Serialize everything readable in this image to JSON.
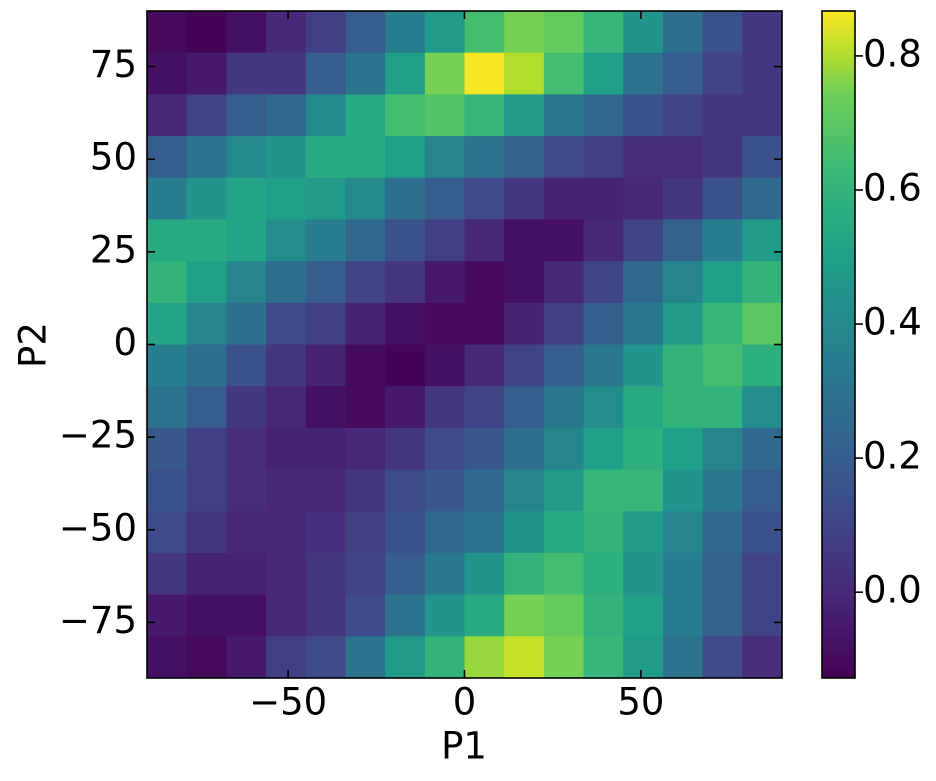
{
  "chart_data": {
    "type": "heatmap",
    "x_label": "P1",
    "y_label": "P2",
    "xlim": [
      -90,
      90
    ],
    "ylim": [
      -90,
      90
    ],
    "xticks": [
      {
        "value": -50,
        "label": "−50"
      },
      0,
      50
    ],
    "yticks": [
      {
        "value": -75,
        "label": "−75"
      },
      {
        "value": -50,
        "label": "−50"
      },
      {
        "value": -25,
        "label": "−25"
      },
      0,
      25,
      50,
      75
    ],
    "colormap": "viridis",
    "zlim": [
      -0.128,
      0.867
    ],
    "colorbar_ticks": [
      {
        "value": 0,
        "label": "0.0"
      },
      {
        "value": 0.2,
        "label": "0.2"
      },
      {
        "value": 0.4,
        "label": "0.4"
      },
      {
        "value": 0.6,
        "label": "0.6"
      },
      {
        "value": 0.8,
        "label": "0.8"
      }
    ],
    "z": [
      [
        -0.1,
        -0.12,
        -0.08,
        0.0,
        0.08,
        0.2,
        0.35,
        0.48,
        0.65,
        0.75,
        0.72,
        0.62,
        0.45,
        0.28,
        0.15,
        0.05
      ],
      [
        -0.08,
        -0.05,
        0.05,
        0.05,
        0.2,
        0.3,
        0.5,
        0.75,
        0.86,
        0.8,
        0.65,
        0.5,
        0.3,
        0.2,
        0.1,
        0.05
      ],
      [
        0.0,
        0.1,
        0.2,
        0.25,
        0.4,
        0.55,
        0.65,
        0.68,
        0.62,
        0.48,
        0.32,
        0.25,
        0.15,
        0.1,
        0.05,
        0.05
      ],
      [
        0.2,
        0.3,
        0.4,
        0.45,
        0.55,
        0.55,
        0.5,
        0.38,
        0.3,
        0.22,
        0.12,
        0.08,
        0.02,
        0.02,
        0.05,
        0.15
      ],
      [
        0.35,
        0.45,
        0.52,
        0.5,
        0.48,
        0.4,
        0.28,
        0.2,
        0.12,
        0.05,
        -0.02,
        -0.02,
        0.0,
        0.05,
        0.15,
        0.25
      ],
      [
        0.55,
        0.55,
        0.52,
        0.42,
        0.35,
        0.25,
        0.15,
        0.08,
        0.0,
        -0.08,
        -0.08,
        0.0,
        0.1,
        0.22,
        0.35,
        0.48
      ],
      [
        0.6,
        0.5,
        0.38,
        0.28,
        0.2,
        0.1,
        0.05,
        -0.05,
        -0.1,
        -0.08,
        0.0,
        0.1,
        0.25,
        0.38,
        0.5,
        0.6
      ],
      [
        0.52,
        0.38,
        0.28,
        0.12,
        0.08,
        -0.02,
        -0.08,
        -0.1,
        -0.1,
        -0.02,
        0.08,
        0.2,
        0.32,
        0.48,
        0.62,
        0.7
      ],
      [
        0.35,
        0.28,
        0.15,
        0.05,
        -0.02,
        -0.1,
        -0.12,
        -0.08,
        0.0,
        0.1,
        0.2,
        0.32,
        0.45,
        0.6,
        0.65,
        0.58
      ],
      [
        0.3,
        0.2,
        0.05,
        0.0,
        -0.08,
        -0.1,
        -0.05,
        0.05,
        0.1,
        0.2,
        0.32,
        0.42,
        0.55,
        0.6,
        0.6,
        0.42
      ],
      [
        0.18,
        0.08,
        0.02,
        -0.02,
        -0.02,
        0.0,
        0.05,
        0.12,
        0.18,
        0.28,
        0.38,
        0.5,
        0.58,
        0.5,
        0.38,
        0.25
      ],
      [
        0.15,
        0.08,
        0.02,
        0.0,
        0.0,
        0.05,
        0.12,
        0.18,
        0.25,
        0.38,
        0.48,
        0.62,
        0.62,
        0.45,
        0.32,
        0.2
      ],
      [
        0.12,
        0.05,
        0.0,
        0.0,
        0.03,
        0.08,
        0.15,
        0.25,
        0.3,
        0.45,
        0.55,
        0.6,
        0.48,
        0.38,
        0.25,
        0.15
      ],
      [
        0.05,
        -0.02,
        -0.02,
        0.0,
        0.05,
        0.1,
        0.2,
        0.32,
        0.45,
        0.6,
        0.65,
        0.58,
        0.45,
        0.35,
        0.22,
        0.1
      ],
      [
        -0.05,
        -0.08,
        -0.08,
        0.0,
        0.05,
        0.12,
        0.3,
        0.45,
        0.55,
        0.75,
        0.72,
        0.6,
        0.5,
        0.35,
        0.22,
        0.1
      ],
      [
        -0.08,
        -0.1,
        -0.05,
        0.08,
        0.12,
        0.3,
        0.48,
        0.6,
        0.78,
        0.82,
        0.75,
        0.62,
        0.48,
        0.3,
        0.12,
        0.02
      ]
    ]
  }
}
